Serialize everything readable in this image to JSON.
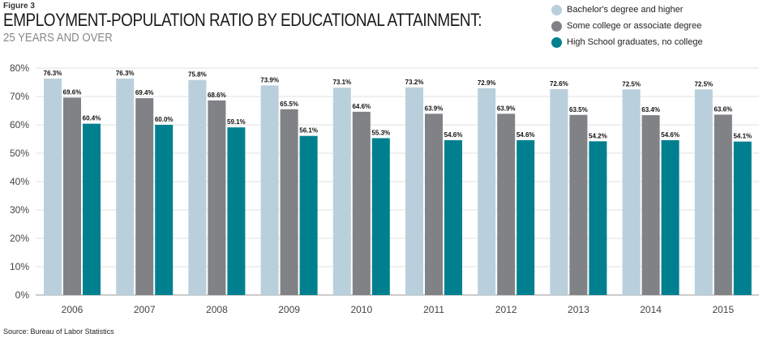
{
  "figure_label": "Figure 3",
  "title": "EMPLOYMENT-POPULATION RATIO BY EDUCATIONAL ATTAINMENT:",
  "subtitle": "25 YEARS AND OVER",
  "source": "Source: Bureau of Labor Statistics",
  "chart_data": {
    "type": "bar",
    "categories": [
      "2006",
      "2007",
      "2008",
      "2009",
      "2010",
      "2011",
      "2012",
      "2013",
      "2014",
      "2015"
    ],
    "series": [
      {
        "name": "Bachelor's degree and higher",
        "color": "#b9cfdc",
        "values": [
          76.3,
          76.3,
          75.8,
          73.9,
          73.1,
          73.2,
          72.9,
          72.6,
          72.5,
          72.5
        ]
      },
      {
        "name": "Some college or associate degree",
        "color": "#808286",
        "values": [
          69.6,
          69.4,
          68.6,
          65.5,
          64.6,
          63.9,
          63.9,
          63.5,
          63.4,
          63.6
        ]
      },
      {
        "name": "High School graduates, no college",
        "color": "#00808f",
        "values": [
          60.4,
          60.0,
          59.1,
          56.1,
          55.3,
          54.6,
          54.6,
          54.2,
          54.6,
          54.1
        ]
      }
    ],
    "y_ticks": [
      "0%",
      "10%",
      "20%",
      "30%",
      "40%",
      "50%",
      "60%",
      "70%",
      "80%"
    ],
    "ylim": [
      0,
      80
    ],
    "value_suffix": "%",
    "grid": true,
    "legend_position": "top-right"
  }
}
